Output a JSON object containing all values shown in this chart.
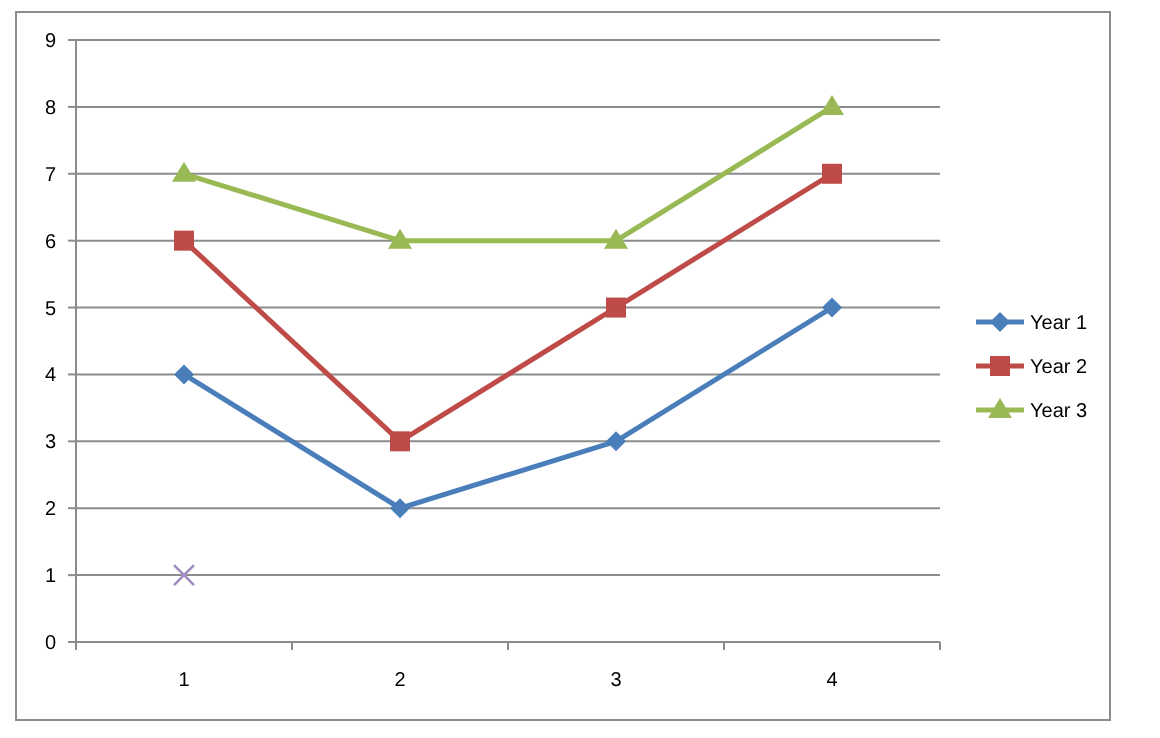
{
  "chart_data": {
    "type": "line",
    "categories": [
      "1",
      "2",
      "3",
      "4"
    ],
    "series": [
      {
        "name": "Year 1",
        "color": "#4a7ebb",
        "values": [
          4,
          2,
          3,
          5
        ],
        "marker": "diamond"
      },
      {
        "name": "Year 2",
        "color": "#be4b48",
        "values": [
          6,
          3,
          5,
          7
        ],
        "marker": "square"
      },
      {
        "name": "Year 3",
        "color": "#98b954",
        "values": [
          7,
          6,
          6,
          8
        ],
        "marker": "triangle"
      },
      {
        "type": "scatter",
        "color": "#a08cc0",
        "values": [
          1,
          null,
          null,
          null
        ],
        "marker": "cross"
      }
    ],
    "ylim": [
      0,
      9
    ],
    "yticks": [
      0,
      1,
      2,
      3,
      4,
      5,
      6,
      7,
      8,
      9
    ],
    "grid": "y",
    "legend": "right"
  }
}
